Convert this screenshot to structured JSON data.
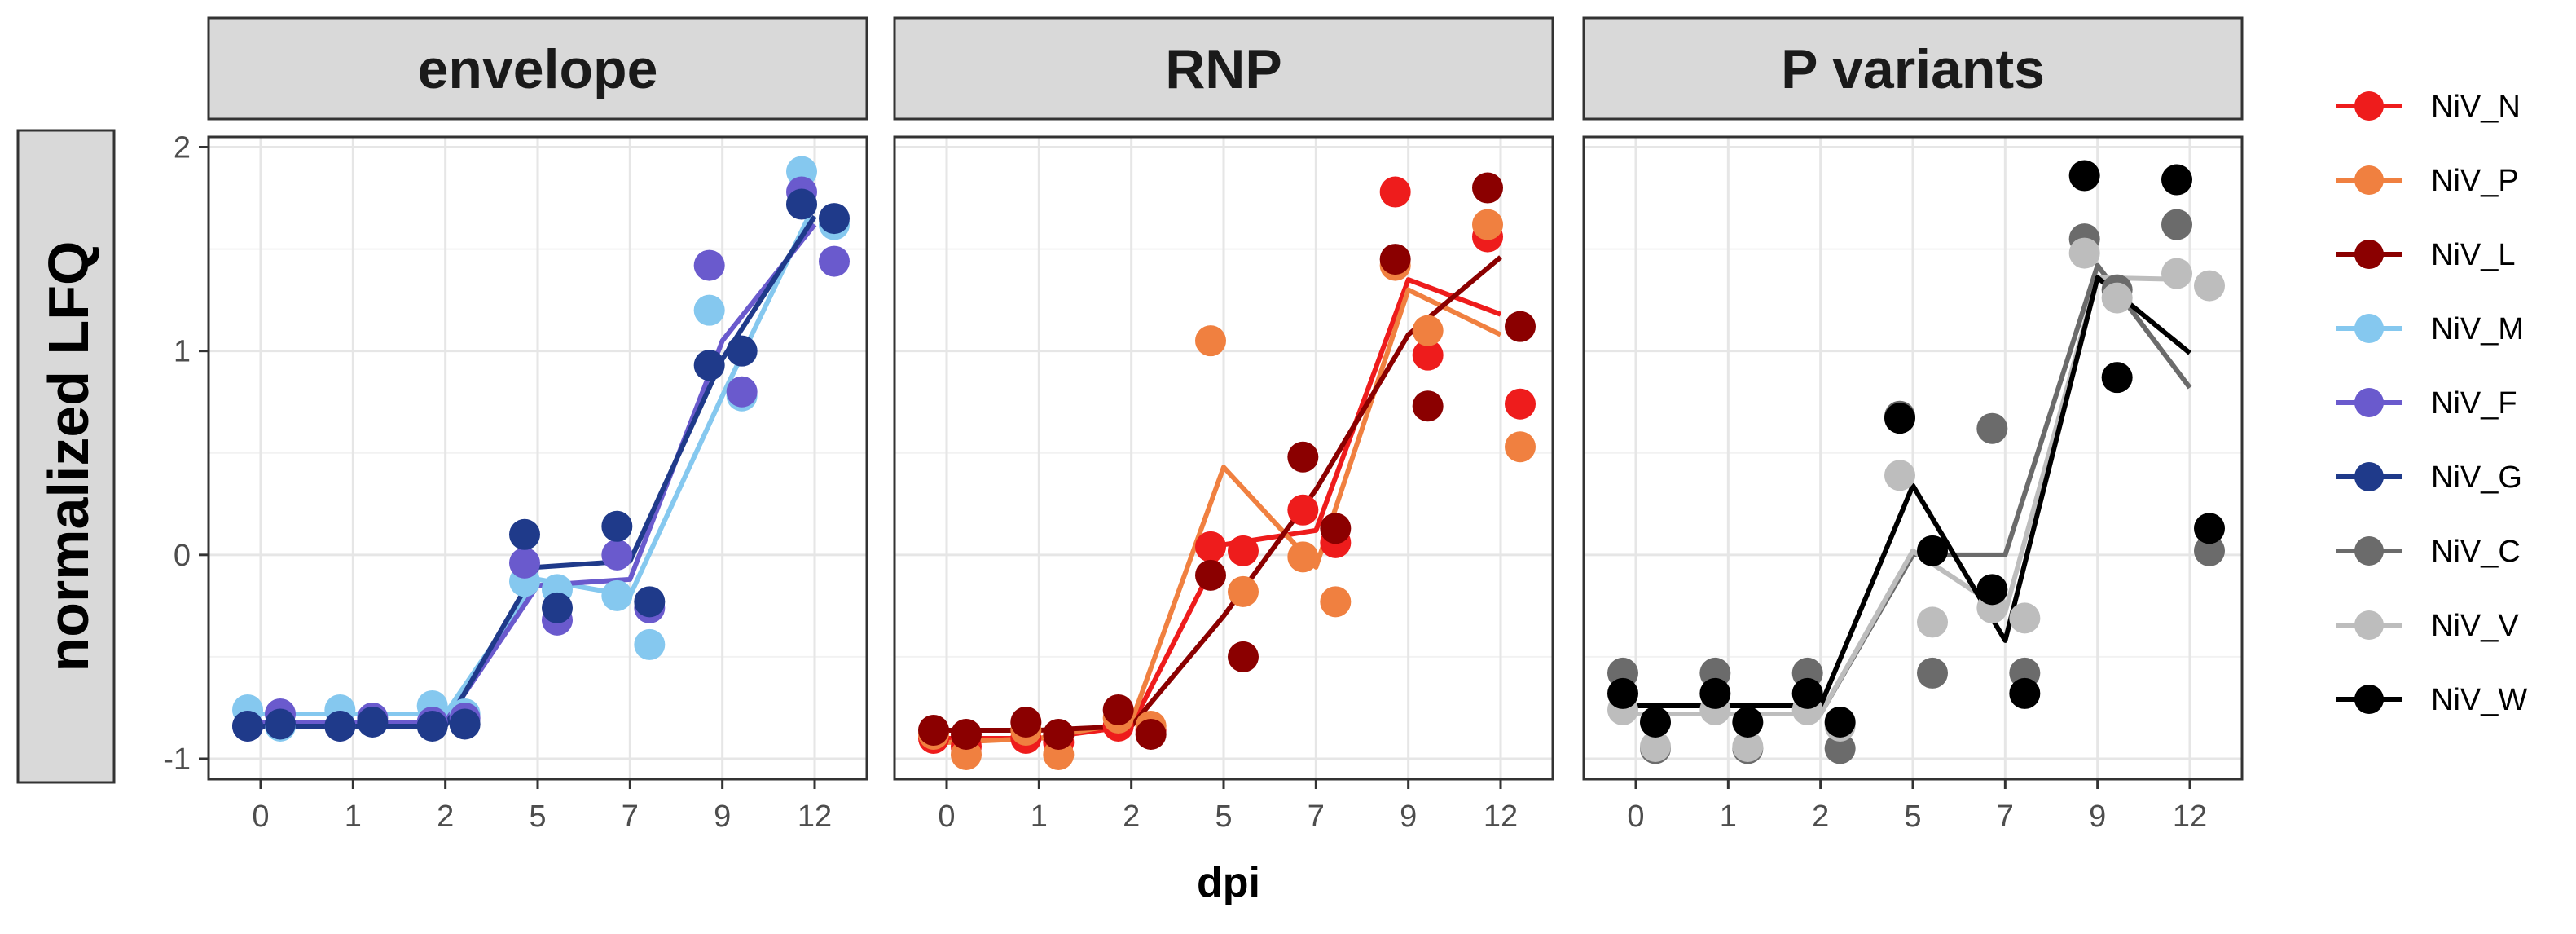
{
  "chart_data": {
    "type": "line",
    "ylabel": "normalized LFQ",
    "xlabel": "dpi",
    "x_categories": [
      "0",
      "1",
      "2",
      "5",
      "7",
      "9",
      "12"
    ],
    "y_ticks": [
      -1,
      0,
      1,
      2
    ],
    "ylim": [
      -1.1,
      2.05
    ],
    "grid": true,
    "legend_position": "right",
    "panels": [
      {
        "title": "envelope",
        "series": [
          {
            "name": "NiV_M",
            "color": "#85C8EF",
            "line": [
              -0.78,
              -0.78,
              -0.78,
              -0.12,
              -0.2,
              0.78,
              1.72
            ],
            "points": [
              [
                0,
                -0.76
              ],
              [
                0,
                -0.84
              ],
              [
                1,
                -0.76
              ],
              [
                1,
                -0.8
              ],
              [
                2,
                -0.74
              ],
              [
                2,
                -0.78
              ],
              [
                3,
                -0.13
              ],
              [
                3,
                -0.17
              ],
              [
                4,
                -0.2
              ],
              [
                4,
                -0.44
              ],
              [
                5,
                1.2
              ],
              [
                5,
                0.78
              ],
              [
                6,
                1.88
              ],
              [
                6,
                1.62
              ]
            ]
          },
          {
            "name": "NiV_F",
            "color": "#6A5ACD",
            "line": [
              -0.82,
              -0.82,
              -0.82,
              -0.15,
              -0.12,
              1.05,
              1.62
            ],
            "points": [
              [
                0,
                -0.84
              ],
              [
                0,
                -0.78
              ],
              [
                1,
                -0.84
              ],
              [
                1,
                -0.8
              ],
              [
                2,
                -0.82
              ],
              [
                2,
                -0.8
              ],
              [
                3,
                -0.04
              ],
              [
                3,
                -0.32
              ],
              [
                4,
                0.0
              ],
              [
                4,
                -0.26
              ],
              [
                5,
                1.42
              ],
              [
                5,
                0.8
              ],
              [
                6,
                1.78
              ],
              [
                6,
                1.44
              ]
            ]
          },
          {
            "name": "NiV_G",
            "color": "#1F3A8A",
            "line": [
              -0.84,
              -0.84,
              -0.84,
              -0.06,
              -0.03,
              0.96,
              1.66
            ],
            "points": [
              [
                0,
                -0.84
              ],
              [
                0,
                -0.83
              ],
              [
                1,
                -0.84
              ],
              [
                1,
                -0.82
              ],
              [
                2,
                -0.84
              ],
              [
                2,
                -0.83
              ],
              [
                3,
                0.1
              ],
              [
                3,
                -0.26
              ],
              [
                4,
                0.14
              ],
              [
                4,
                -0.23
              ],
              [
                5,
                0.93
              ],
              [
                5,
                1.0
              ],
              [
                6,
                1.72
              ],
              [
                6,
                1.65
              ]
            ]
          }
        ]
      },
      {
        "title": "RNP",
        "series": [
          {
            "name": "NiV_N",
            "color": "#EE1C1C",
            "line": [
              -0.9,
              -0.9,
              -0.84,
              0.05,
              0.12,
              1.35,
              1.18
            ],
            "points": [
              [
                0,
                -0.9
              ],
              [
                0,
                -0.94
              ],
              [
                1,
                -0.9
              ],
              [
                1,
                -0.92
              ],
              [
                2,
                -0.84
              ],
              [
                2,
                -0.86
              ],
              [
                3,
                0.04
              ],
              [
                3,
                0.02
              ],
              [
                4,
                0.22
              ],
              [
                4,
                0.06
              ],
              [
                5,
                1.78
              ],
              [
                5,
                0.98
              ],
              [
                6,
                1.56
              ],
              [
                6,
                0.74
              ]
            ]
          },
          {
            "name": "NiV_P",
            "color": "#F08040",
            "line": [
              -0.92,
              -0.9,
              -0.82,
              0.43,
              -0.06,
              1.3,
              1.08
            ],
            "points": [
              [
                0,
                -0.88
              ],
              [
                0,
                -0.98
              ],
              [
                1,
                -0.86
              ],
              [
                1,
                -0.98
              ],
              [
                2,
                -0.8
              ],
              [
                2,
                -0.84
              ],
              [
                3,
                1.05
              ],
              [
                3,
                -0.18
              ],
              [
                4,
                -0.01
              ],
              [
                4,
                -0.23
              ],
              [
                5,
                1.42
              ],
              [
                5,
                1.1
              ],
              [
                6,
                1.62
              ],
              [
                6,
                0.53
              ]
            ]
          },
          {
            "name": "NiV_L",
            "color": "#8B0000",
            "line": [
              -0.86,
              -0.86,
              -0.84,
              -0.3,
              0.32,
              1.08,
              1.46
            ],
            "points": [
              [
                0,
                -0.86
              ],
              [
                0,
                -0.88
              ],
              [
                1,
                -0.82
              ],
              [
                1,
                -0.88
              ],
              [
                2,
                -0.76
              ],
              [
                2,
                -0.88
              ],
              [
                3,
                -0.1
              ],
              [
                3,
                -0.5
              ],
              [
                4,
                0.48
              ],
              [
                4,
                0.13
              ],
              [
                5,
                1.45
              ],
              [
                5,
                0.73
              ],
              [
                6,
                1.8
              ],
              [
                6,
                1.12
              ]
            ]
          }
        ]
      },
      {
        "title": "P variants",
        "series": [
          {
            "name": "NiV_C",
            "color": "#6B6B6B",
            "line": [
              -0.78,
              -0.78,
              -0.78,
              0.0,
              0.0,
              1.42,
              0.82
            ],
            "points": [
              [
                0,
                -0.58
              ],
              [
                0,
                -0.95
              ],
              [
                1,
                -0.58
              ],
              [
                1,
                -0.95
              ],
              [
                2,
                -0.58
              ],
              [
                2,
                -0.95
              ],
              [
                3,
                0.68
              ],
              [
                3,
                -0.58
              ],
              [
                4,
                0.62
              ],
              [
                4,
                -0.58
              ],
              [
                5,
                1.55
              ],
              [
                5,
                1.3
              ],
              [
                6,
                1.62
              ],
              [
                6,
                0.02
              ]
            ]
          },
          {
            "name": "NiV_V",
            "color": "#BDBDBD",
            "line": [
              -0.78,
              -0.78,
              -0.78,
              0.02,
              -0.28,
              1.36,
              1.35
            ],
            "points": [
              [
                0,
                -0.76
              ],
              [
                0,
                -0.94
              ],
              [
                1,
                -0.76
              ],
              [
                1,
                -0.94
              ],
              [
                2,
                -0.76
              ],
              [
                2,
                -0.84
              ],
              [
                3,
                0.39
              ],
              [
                3,
                -0.33
              ],
              [
                4,
                -0.26
              ],
              [
                4,
                -0.31
              ],
              [
                5,
                1.48
              ],
              [
                5,
                1.26
              ],
              [
                6,
                1.38
              ],
              [
                6,
                1.32
              ]
            ]
          },
          {
            "name": "NiV_W",
            "color": "#000000",
            "line": [
              -0.74,
              -0.74,
              -0.74,
              0.34,
              -0.42,
              1.36,
              0.99
            ],
            "points": [
              [
                0,
                -0.68
              ],
              [
                0,
                -0.82
              ],
              [
                1,
                -0.68
              ],
              [
                1,
                -0.82
              ],
              [
                2,
                -0.68
              ],
              [
                2,
                -0.82
              ],
              [
                3,
                0.67
              ],
              [
                3,
                0.02
              ],
              [
                4,
                -0.17
              ],
              [
                4,
                -0.68
              ],
              [
                5,
                1.86
              ],
              [
                5,
                0.87
              ],
              [
                6,
                1.84
              ],
              [
                6,
                0.13
              ]
            ]
          }
        ]
      }
    ],
    "legend": [
      {
        "name": "NiV_N",
        "color": "#EE1C1C"
      },
      {
        "name": "NiV_P",
        "color": "#F08040"
      },
      {
        "name": "NiV_L",
        "color": "#8B0000"
      },
      {
        "name": "NiV_M",
        "color": "#85C8EF"
      },
      {
        "name": "NiV_F",
        "color": "#6A5ACD"
      },
      {
        "name": "NiV_G",
        "color": "#1F3A8A"
      },
      {
        "name": "NiV_C",
        "color": "#6B6B6B"
      },
      {
        "name": "NiV_V",
        "color": "#BDBDBD"
      },
      {
        "name": "NiV_W",
        "color": "#000000"
      }
    ]
  }
}
